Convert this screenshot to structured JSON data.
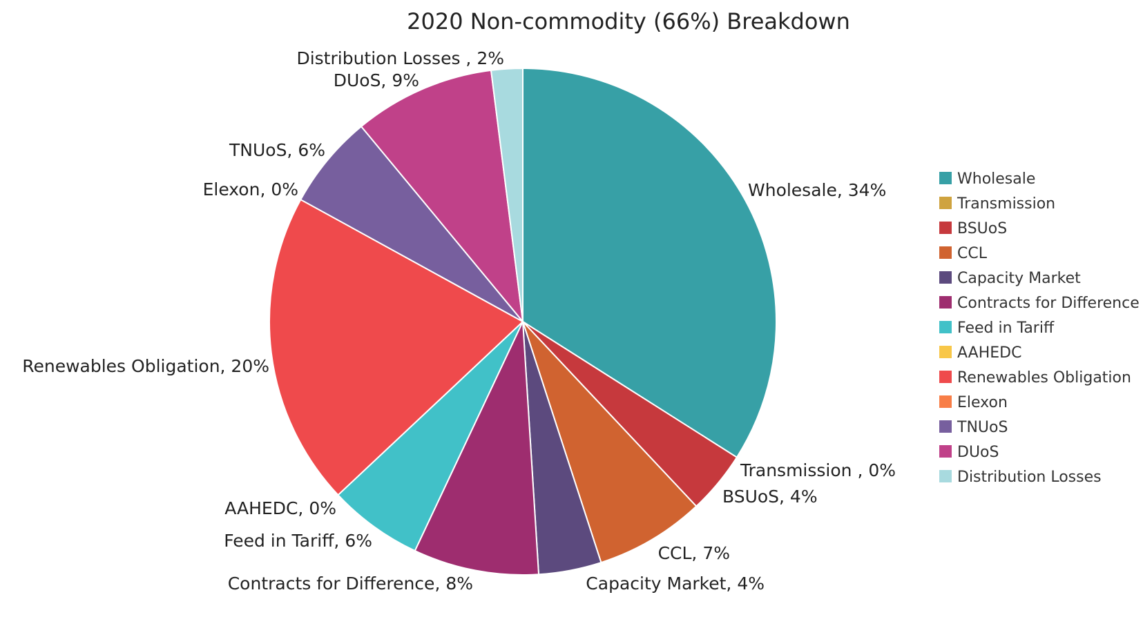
{
  "chart_data": {
    "type": "pie",
    "title": "2020 Non-commodity (66%) Breakdown",
    "legend_position": "right",
    "slices": [
      {
        "name": "Wholesale",
        "label": "Wholesale, 34%",
        "value": 34,
        "color": "#37a0a6"
      },
      {
        "name": "Transmission",
        "label": "Transmission , 0%",
        "value": 0,
        "color": "#cfa33f"
      },
      {
        "name": "BSUoS",
        "label": "BSUoS, 4%",
        "value": 4,
        "color": "#c6393d"
      },
      {
        "name": "CCL",
        "label": "CCL, 7%",
        "value": 7,
        "color": "#d06330"
      },
      {
        "name": "Capacity Market",
        "label": "Capacity Market, 4%",
        "value": 4,
        "color": "#5c4a7e"
      },
      {
        "name": "Contracts for Difference",
        "label": "Contracts for Difference, 8%",
        "value": 8,
        "color": "#9e2d6f"
      },
      {
        "name": "Feed in Tariff",
        "label": "Feed in Tariff, 6%",
        "value": 6,
        "color": "#41c1c8"
      },
      {
        "name": "AAHEDC",
        "label": "AAHEDC, 0%",
        "value": 0,
        "color": "#f8c748"
      },
      {
        "name": "Renewables Obligation",
        "label": "Renewables Obligation, 20%",
        "value": 20,
        "color": "#ef4a4c"
      },
      {
        "name": "Elexon",
        "label": "Elexon, 0%",
        "value": 0,
        "color": "#f87e47"
      },
      {
        "name": "TNUoS",
        "label": "TNUoS, 6%",
        "value": 6,
        "color": "#775f9e"
      },
      {
        "name": "DUoS",
        "label": "DUoS, 9%",
        "value": 9,
        "color": "#c04189"
      },
      {
        "name": "Distribution Losses",
        "label": "Distribution Losses , 2%",
        "value": 2,
        "color": "#a8dadf"
      }
    ]
  }
}
